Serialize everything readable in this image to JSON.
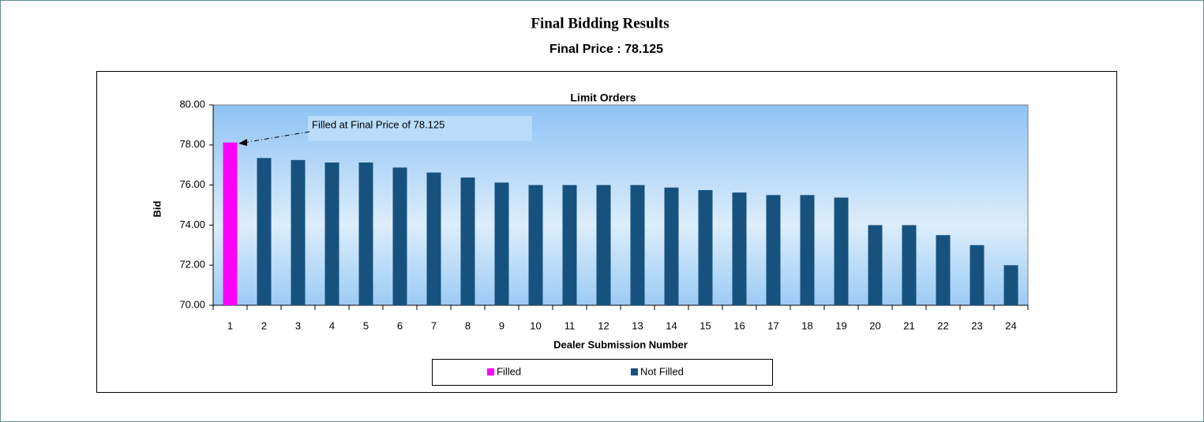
{
  "chart_data": {
    "type": "bar",
    "title": "Final Bidding Results",
    "subtitle": "Final Price : 78.125",
    "plot_title": "Limit Orders",
    "annotation": "Filled at Final Price of 78.125",
    "xlabel": "Dealer Submission Number",
    "ylabel": "Bid",
    "categories": [
      "1",
      "2",
      "3",
      "4",
      "5",
      "6",
      "7",
      "8",
      "9",
      "10",
      "11",
      "12",
      "13",
      "14",
      "15",
      "16",
      "17",
      "18",
      "19",
      "20",
      "21",
      "22",
      "23",
      "24"
    ],
    "series": [
      {
        "name": "Filled",
        "color": "#ff00ff",
        "values": [
          78.125,
          null,
          null,
          null,
          null,
          null,
          null,
          null,
          null,
          null,
          null,
          null,
          null,
          null,
          null,
          null,
          null,
          null,
          null,
          null,
          null,
          null,
          null,
          null
        ]
      },
      {
        "name": "Not Filled",
        "color": "#17527f",
        "values": [
          null,
          77.35,
          77.25,
          77.125,
          77.125,
          76.875,
          76.625,
          76.375,
          76.125,
          76.0,
          76.0,
          76.0,
          76.0,
          75.875,
          75.75,
          75.625,
          75.5,
          75.5,
          75.375,
          74.0,
          74.0,
          73.5,
          73.0,
          72.0
        ]
      }
    ],
    "ylim": [
      70,
      80
    ],
    "yticks": [
      {
        "value": 70,
        "label": "70.00"
      },
      {
        "value": 72,
        "label": "72.00"
      },
      {
        "value": 74,
        "label": "74.00"
      },
      {
        "value": 76,
        "label": "76.00"
      },
      {
        "value": 78,
        "label": "78.00"
      },
      {
        "value": 80,
        "label": "80.00"
      }
    ],
    "legend": "bottom"
  }
}
